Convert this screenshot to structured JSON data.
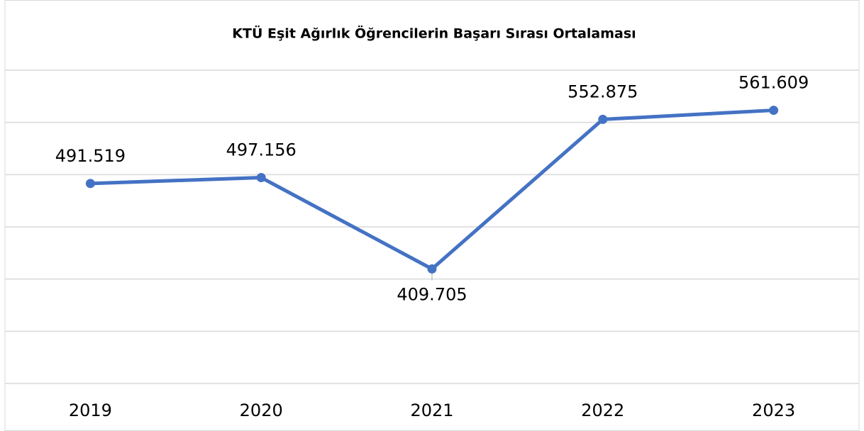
{
  "chart_data": {
    "type": "line",
    "title": "KTÜ Eşit Ağırlık Öğrencilerin Başarı Sırası Ortalaması",
    "categories": [
      "2019",
      "2020",
      "2021",
      "2022",
      "2023"
    ],
    "series": [
      {
        "name": "Başarı Sırası Ortalaması",
        "color": "#4472c4",
        "values": [
          491.519,
          497.156,
          409.705,
          552.875,
          561.609
        ]
      }
    ],
    "ylim": [
      300,
      600
    ],
    "yticks": [
      300,
      350,
      400,
      450,
      500,
      550,
      600
    ],
    "grid": true
  }
}
